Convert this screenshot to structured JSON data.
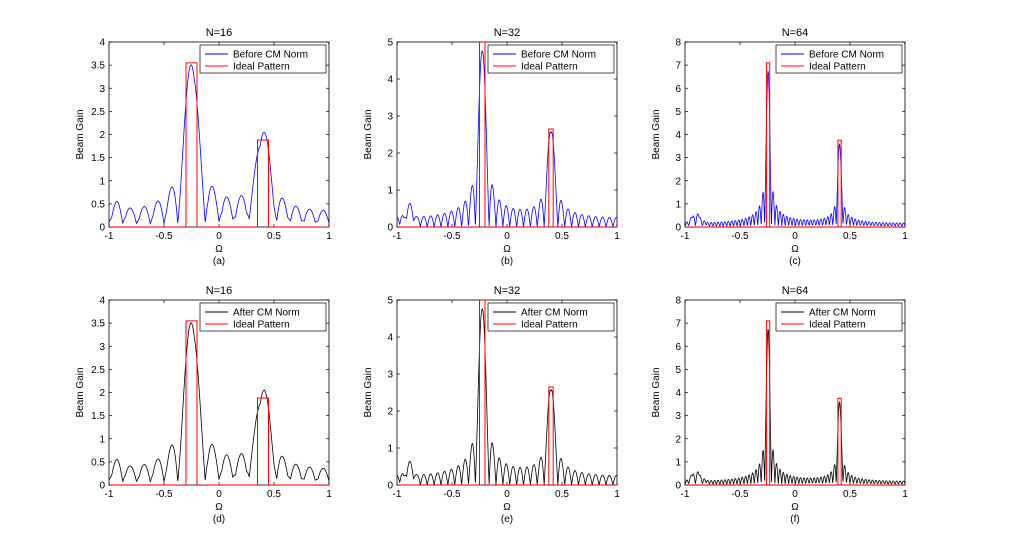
{
  "chart_data": [
    {
      "panel": "(a)",
      "type": "line",
      "title": "N=16",
      "xlabel": "Ω",
      "ylabel": "Beam Gain",
      "caption": "(a)",
      "xlim": [
        -1,
        1
      ],
      "ylim": [
        0,
        4
      ],
      "xticks": [
        -1,
        -0.5,
        0,
        0.5,
        1
      ],
      "xtick_labels": [
        "-1",
        "-0.5",
        "0",
        "0.5",
        "1"
      ],
      "yticks": [
        0,
        0.5,
        1,
        1.5,
        2,
        2.5,
        3,
        3.5,
        4
      ],
      "ytick_labels": [
        "0",
        "0.5",
        "1",
        "1.5",
        "2",
        "2.5",
        "3",
        "3.5",
        "4"
      ],
      "series": [
        {
          "name": "Before CM Norm",
          "color": "#0000ff",
          "N": 16,
          "peak1": 3.42,
          "peak2": 1.88
        },
        {
          "name": "Ideal Pattern",
          "color": "#ff0000",
          "windows": [
            {
              "from": -0.3,
              "to": -0.2,
              "height": 3.55
            },
            {
              "from": 0.35,
              "to": 0.45,
              "height": 1.88
            }
          ]
        }
      ]
    },
    {
      "panel": "(b)",
      "type": "line",
      "title": "N=32",
      "xlabel": "Ω",
      "ylabel": "Beam Gain",
      "caption": "(b)",
      "xlim": [
        -1,
        1
      ],
      "ylim": [
        0,
        5
      ],
      "xticks": [
        -1,
        -0.5,
        0,
        0.5,
        1
      ],
      "xtick_labels": [
        "-1",
        "-0.5",
        "0",
        "0.5",
        "1"
      ],
      "yticks": [
        0,
        1,
        2,
        3,
        4,
        5
      ],
      "ytick_labels": [
        "0",
        "1",
        "2",
        "3",
        "4",
        "5"
      ],
      "series": [
        {
          "name": "Before CM Norm",
          "color": "#0000ff",
          "N": 32,
          "peak1": 4.75,
          "peak2": 2.55
        },
        {
          "name": "Ideal Pattern",
          "color": "#ff0000",
          "windows": [
            {
              "from": -0.25,
              "to": -0.2,
              "height": 5.0
            },
            {
              "from": 0.38,
              "to": 0.42,
              "height": 2.65
            }
          ]
        }
      ]
    },
    {
      "panel": "(c)",
      "type": "line",
      "title": "N=64",
      "xlabel": "Ω",
      "ylabel": "Beam Gain",
      "caption": "(c)",
      "xlim": [
        -1,
        1
      ],
      "ylim": [
        0,
        8
      ],
      "xticks": [
        -1,
        -0.5,
        0,
        0.5,
        1
      ],
      "xtick_labels": [
        "-1",
        "-0.5",
        "0",
        "0.5",
        "1"
      ],
      "yticks": [
        0,
        1,
        2,
        3,
        4,
        5,
        6,
        7,
        8
      ],
      "ytick_labels": [
        "0",
        "1",
        "2",
        "3",
        "4",
        "5",
        "6",
        "7",
        "8"
      ],
      "series": [
        {
          "name": "Before CM Norm",
          "color": "#0000ff",
          "N": 64,
          "peak1": 6.7,
          "peak2": 3.5
        },
        {
          "name": "Ideal Pattern",
          "color": "#ff0000",
          "windows": [
            {
              "from": -0.26,
              "to": -0.23,
              "height": 7.1
            },
            {
              "from": 0.39,
              "to": 0.42,
              "height": 3.75
            }
          ]
        }
      ]
    },
    {
      "panel": "(d)",
      "type": "line",
      "title": "N=16",
      "xlabel": "Ω",
      "ylabel": "Beam Gain",
      "caption": "(d)",
      "xlim": [
        -1,
        1
      ],
      "ylim": [
        0,
        4
      ],
      "xticks": [
        -1,
        -0.5,
        0,
        0.5,
        1
      ],
      "xtick_labels": [
        "-1",
        "-0.5",
        "0",
        "0.5",
        "1"
      ],
      "yticks": [
        0,
        0.5,
        1,
        1.5,
        2,
        2.5,
        3,
        3.5,
        4
      ],
      "ytick_labels": [
        "0",
        "0.5",
        "1",
        "1.5",
        "2",
        "2.5",
        "3",
        "3.5",
        "4"
      ],
      "series": [
        {
          "name": "After CM Norm",
          "color": "#000000",
          "N": 16,
          "peak1": 3.42,
          "peak2": 1.88
        },
        {
          "name": "Ideal Pattern",
          "color": "#ff0000",
          "windows": [
            {
              "from": -0.3,
              "to": -0.2,
              "height": 3.55
            },
            {
              "from": 0.35,
              "to": 0.45,
              "height": 1.88
            }
          ]
        }
      ]
    },
    {
      "panel": "(e)",
      "type": "line",
      "title": "N=32",
      "xlabel": "Ω",
      "ylabel": "Beam Gain",
      "caption": "(e)",
      "xlim": [
        -1,
        1
      ],
      "ylim": [
        0,
        5
      ],
      "xticks": [
        -1,
        -0.5,
        0,
        0.5,
        1
      ],
      "xtick_labels": [
        "-1",
        "-0.5",
        "0",
        "0.5",
        "1"
      ],
      "yticks": [
        0,
        1,
        2,
        3,
        4,
        5
      ],
      "ytick_labels": [
        "0",
        "1",
        "2",
        "3",
        "4",
        "5"
      ],
      "series": [
        {
          "name": "After CM Norm",
          "color": "#000000",
          "N": 32,
          "peak1": 4.75,
          "peak2": 2.55
        },
        {
          "name": "Ideal Pattern",
          "color": "#ff0000",
          "windows": [
            {
              "from": -0.25,
              "to": -0.2,
              "height": 5.0
            },
            {
              "from": 0.38,
              "to": 0.42,
              "height": 2.65
            }
          ]
        }
      ]
    },
    {
      "panel": "(f)",
      "type": "line",
      "title": "N=64",
      "xlabel": "Ω",
      "ylabel": "Beam Gain",
      "caption": "(f)",
      "xlim": [
        -1,
        1
      ],
      "ylim": [
        0,
        8
      ],
      "xticks": [
        -1,
        -0.5,
        0,
        0.5,
        1
      ],
      "xtick_labels": [
        "-1",
        "-0.5",
        "0",
        "0.5",
        "1"
      ],
      "yticks": [
        0,
        1,
        2,
        3,
        4,
        5,
        6,
        7,
        8
      ],
      "ytick_labels": [
        "0",
        "1",
        "2",
        "3",
        "4",
        "5",
        "6",
        "7",
        "8"
      ],
      "series": [
        {
          "name": "After CM Norm",
          "color": "#000000",
          "N": 64,
          "peak1": 6.7,
          "peak2": 3.5
        },
        {
          "name": "Ideal Pattern",
          "color": "#ff0000",
          "windows": [
            {
              "from": -0.26,
              "to": -0.23,
              "height": 7.1
            },
            {
              "from": 0.39,
              "to": 0.42,
              "height": 3.75
            }
          ]
        }
      ]
    }
  ]
}
